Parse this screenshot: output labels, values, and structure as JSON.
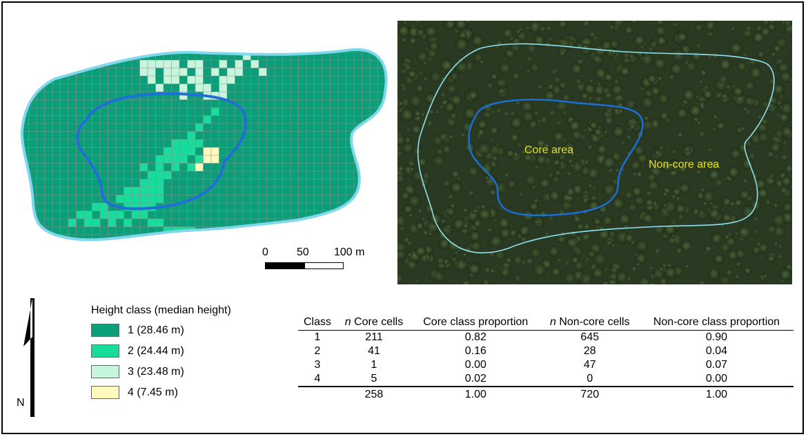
{
  "colors": {
    "class1": "#0a9e79",
    "class2": "#18dc9b",
    "class3": "#c6f6dc",
    "class4": "#fef9bc",
    "core_outline": "#1f6fd6",
    "noncore_outline": "#7fd8ee",
    "grid_line": "#8f8f8f",
    "label_yellow": "#e9e11a"
  },
  "scale_bar": {
    "ticks": [
      "0",
      "50",
      "100 m"
    ]
  },
  "aerial": {
    "core_label": "Core area",
    "noncore_label": "Non-core area"
  },
  "north_arrow": {
    "label": "N"
  },
  "legend": {
    "title": "Height class (median height)",
    "items": [
      {
        "class": "1",
        "label": "1  (28.46 m)",
        "color": "#0a9e79"
      },
      {
        "class": "2",
        "label": "2  (24.44 m)",
        "color": "#18dc9b"
      },
      {
        "class": "3",
        "label": "3  (23.48 m)",
        "color": "#c6f6dc"
      },
      {
        "class": "4",
        "label": "4  (7.45 m)",
        "color": "#fef9bc"
      }
    ]
  },
  "table": {
    "header": {
      "class": "Class",
      "n": "n",
      "core_cells": "Core cells",
      "core_prop": "Core class proportion",
      "noncore_cells": "Non-core cells",
      "noncore_prop": "Non-core class proportion"
    },
    "rows": [
      {
        "class": "1",
        "core_n": "211",
        "core_prop": "0.82",
        "noncore_n": "645",
        "noncore_prop": "0.90"
      },
      {
        "class": "2",
        "core_n": "41",
        "core_prop": "0.16",
        "noncore_n": "28",
        "noncore_prop": "0.04"
      },
      {
        "class": "3",
        "core_n": "1",
        "core_prop": "0.00",
        "noncore_n": "47",
        "noncore_prop": "0.07"
      },
      {
        "class": "4",
        "core_n": "5",
        "core_prop": "0.02",
        "noncore_n": "0",
        "noncore_prop": "0.00"
      }
    ],
    "totals": {
      "core_n": "258",
      "core_prop": "1.00",
      "noncore_n": "720",
      "noncore_prop": "1.00"
    }
  }
}
